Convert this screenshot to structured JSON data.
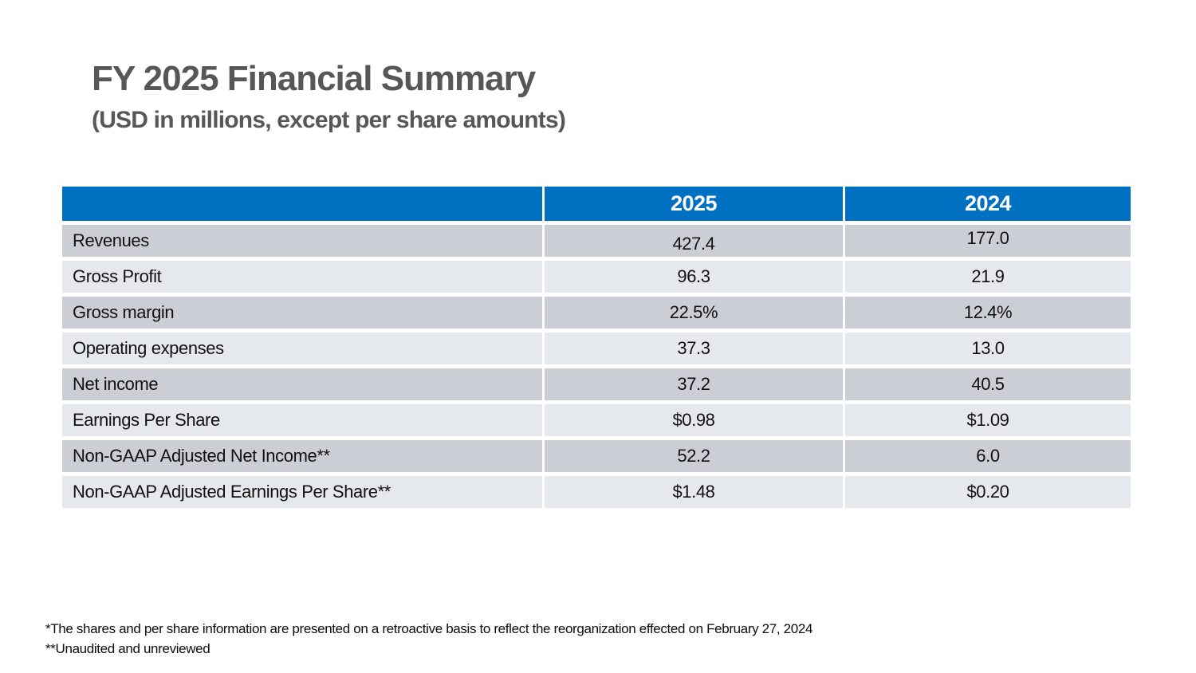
{
  "title": "FY 2025 Financial Summary",
  "subtitle": "(USD in millions, except per share amounts)",
  "table": {
    "columns": [
      "2025",
      "2024"
    ],
    "rows": [
      {
        "label": "Revenues",
        "y2025": "427.4",
        "y2024": "177.0"
      },
      {
        "label": "Gross Profit",
        "y2025": "96.3",
        "y2024": "21.9"
      },
      {
        "label": "Gross margin",
        "y2025": "22.5%",
        "y2024": "12.4%"
      },
      {
        "label": "Operating expenses",
        "y2025": "37.3",
        "y2024": "13.0"
      },
      {
        "label": "Net income",
        "y2025": "37.2",
        "y2024": "40.5"
      },
      {
        "label": "Earnings Per Share",
        "y2025": "$0.98",
        "y2024": "$1.09"
      },
      {
        "label": "Non-GAAP Adjusted Net Income**",
        "y2025": "52.2",
        "y2024": "6.0"
      },
      {
        "label": "Non-GAAP Adjusted Earnings Per Share**",
        "y2025": "$1.48",
        "y2024": "$0.20"
      }
    ]
  },
  "footnotes": [
    "*The shares and per share information are presented on a retroactive basis to reflect the reorganization effected on February 27, 2024",
    "**Unaudited and unreviewed"
  ],
  "colors": {
    "header-blue": "#0070C0",
    "row-dark": "#CBCFD5",
    "row-light": "#E5E8EC",
    "title-gray": "#575757"
  }
}
